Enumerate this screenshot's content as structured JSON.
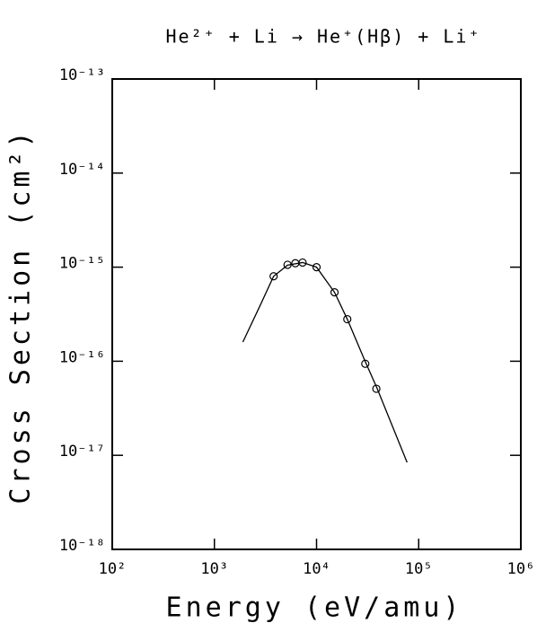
{
  "chart_data": {
    "type": "scatter",
    "title": "He²⁺ + Li → He⁺(Hβ) + Li⁺",
    "x_label": "Energy (eV/amu)",
    "y_label": "Cross Section (cm²)",
    "x_log": true,
    "y_log": true,
    "xlim": [
      100,
      1000000
    ],
    "ylim": [
      1e-18,
      1e-13
    ],
    "xticks": [
      {
        "value": 100,
        "label": "10²"
      },
      {
        "value": 1000,
        "label": "10³"
      },
      {
        "value": 10000,
        "label": "10⁴"
      },
      {
        "value": 100000,
        "label": "10⁵"
      },
      {
        "value": 1000000,
        "label": "10⁶"
      }
    ],
    "yticks": [
      {
        "value": 1e-18,
        "label": "10⁻¹⁸"
      },
      {
        "value": 1e-17,
        "label": "10⁻¹⁷"
      },
      {
        "value": 1e-16,
        "label": "10⁻¹⁶"
      },
      {
        "value": 1e-15,
        "label": "10⁻¹⁵"
      },
      {
        "value": 1e-14,
        "label": "10⁻¹⁴"
      },
      {
        "value": 1e-13,
        "label": "10⁻¹³"
      }
    ],
    "series": [
      {
        "mode": "markers",
        "color": "#000000",
        "x": [
          3800,
          5200,
          6200,
          7300,
          10000,
          15000,
          20000,
          30000,
          38500
        ],
        "values": [
          8e-16,
          1.06e-15,
          1.1e-15,
          1.12e-15,
          1e-15,
          5.4e-16,
          2.8e-16,
          9.4e-17,
          5.1e-17
        ]
      },
      {
        "mode": "lines",
        "color": "#000000",
        "x": [
          1900,
          2800,
          3800,
          5200,
          7300,
          10000,
          15000,
          20000,
          30000,
          39000,
          77000
        ],
        "values": [
          1.6e-16,
          3.9e-16,
          8e-16,
          1.05e-15,
          1.12e-15,
          1e-15,
          5.4e-16,
          2.8e-16,
          9.9e-17,
          5.2e-17,
          8.4e-18
        ]
      }
    ]
  }
}
